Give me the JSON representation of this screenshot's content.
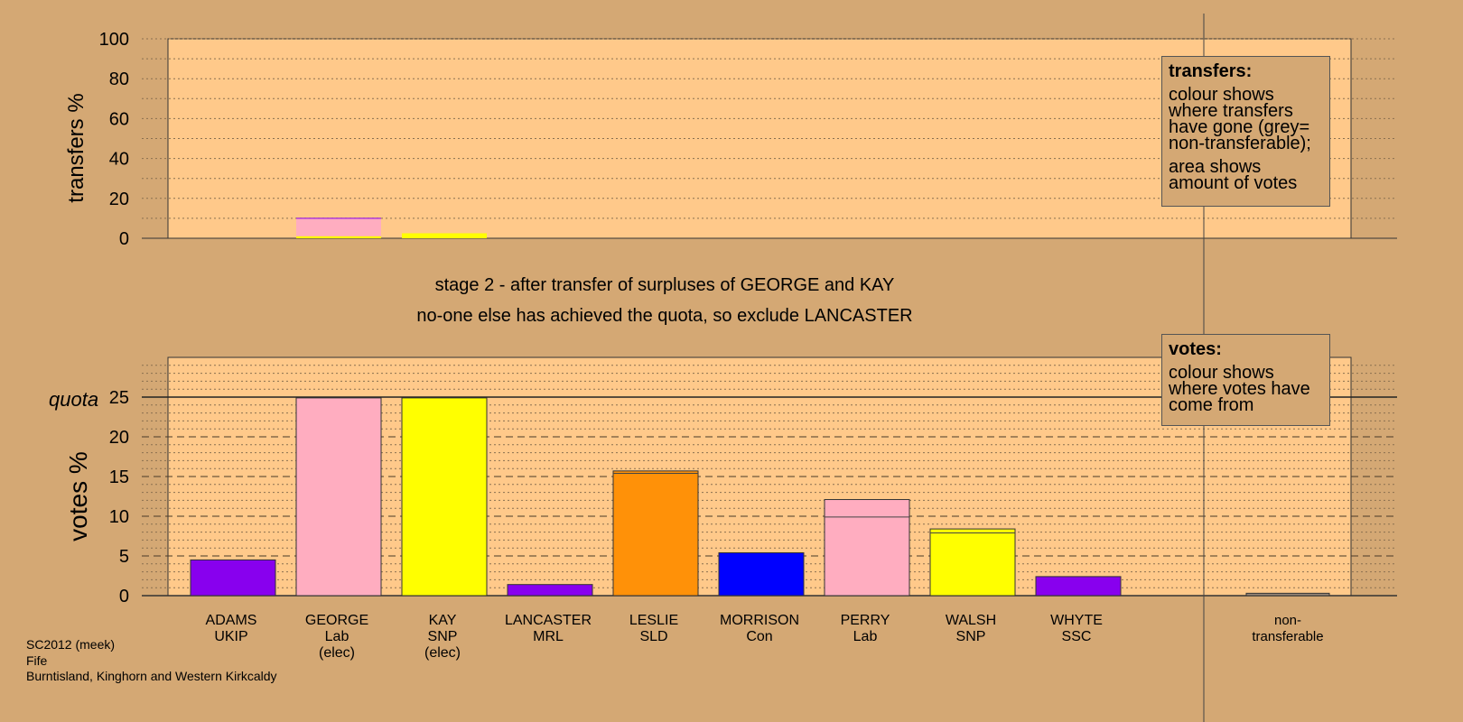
{
  "subtitles": {
    "line1": "stage 2 - after transfer of surpluses of GEORGE and KAY",
    "line2": "no-one else has achieved the quota, so exclude LANCASTER"
  },
  "legend_transfers": {
    "title": "transfers:",
    "para1": "colour shows where transfers have gone (grey= non-transferable);",
    "para2": "area shows amount of votes"
  },
  "legend_votes": {
    "title": "votes:",
    "para1": "colour shows where votes have come from"
  },
  "footer": {
    "line1": "SC2012 (meek)",
    "line2": "Fife",
    "line3": "Burntisland, Kinghorn and Western Kirkcaldy"
  },
  "colors": {
    "background": "#d4a874",
    "plot_bg": "#ffc98a",
    "UKIP": "#8800ee",
    "Lab": "#ffadc0",
    "SNP": "#ffff00",
    "MRL": "#8800ee",
    "SLD": "#ff9108",
    "Con": "#0000ff",
    "SSC": "#8800ee"
  },
  "chart_data": [
    {
      "type": "bar",
      "ylabel": "transfers %",
      "ylim": [
        0,
        100
      ],
      "yticks": [
        0,
        20,
        40,
        60,
        80,
        100
      ],
      "bars": [
        {
          "candidate": "GEORGE",
          "color": "#ffadc0",
          "value": 10,
          "layer": {
            "color": "#ffff00",
            "value": 1
          }
        },
        {
          "candidate": "KAY",
          "color": "#ffff00",
          "value": 2.5
        }
      ]
    },
    {
      "type": "bar",
      "ylabel": "votes %",
      "ylim": [
        0,
        30
      ],
      "yticks": [
        0,
        5,
        10,
        15,
        20,
        25
      ],
      "quota": 25,
      "quota_label": "quota",
      "categories": [
        "ADAMS UKIP",
        "GEORGE Lab (elec)",
        "KAY SNP (elec)",
        "LANCASTER MRL",
        "LESLIE SLD",
        "MORRISON Con",
        "PERRY Lab",
        "WALSH SNP",
        "WHYTE SSC",
        "non-transferable"
      ],
      "candidates": [
        {
          "name": "ADAMS",
          "party": "UKIP",
          "note": "",
          "color": "#8800ee",
          "value": 4.5,
          "layers": []
        },
        {
          "name": "GEORGE",
          "party": "Lab",
          "note": "(elec)",
          "color": "#ffadc0",
          "value": 24.9,
          "layers": []
        },
        {
          "name": "KAY",
          "party": "SNP",
          "note": "(elec)",
          "color": "#ffff00",
          "value": 24.9,
          "layers": []
        },
        {
          "name": "LANCASTER",
          "party": "MRL",
          "note": "",
          "color": "#8800ee",
          "value": 1.4,
          "layers": []
        },
        {
          "name": "LESLIE",
          "party": "SLD",
          "note": "",
          "color": "#ff9108",
          "value": 15.7,
          "layers": [
            {
              "color": "#ff9108",
              "top": 15.4
            }
          ]
        },
        {
          "name": "MORRISON",
          "party": "Con",
          "note": "",
          "color": "#0000ff",
          "value": 5.4,
          "layers": []
        },
        {
          "name": "PERRY",
          "party": "Lab",
          "note": "",
          "color": "#ffadc0",
          "value": 12.1,
          "layers": [
            {
              "color": "#ffadc0",
              "top": 9.9
            }
          ]
        },
        {
          "name": "WALSH",
          "party": "SNP",
          "note": "",
          "color": "#ffff00",
          "value": 8.4,
          "layers": [
            {
              "color": "#ffff00",
              "top": 7.9
            }
          ]
        },
        {
          "name": "WHYTE",
          "party": "SSC",
          "note": "",
          "color": "#8800ee",
          "value": 2.4,
          "layers": []
        }
      ],
      "nontransferable": {
        "label_line1": "non-",
        "label_line2": "transferable",
        "value": 0.3
      }
    }
  ]
}
